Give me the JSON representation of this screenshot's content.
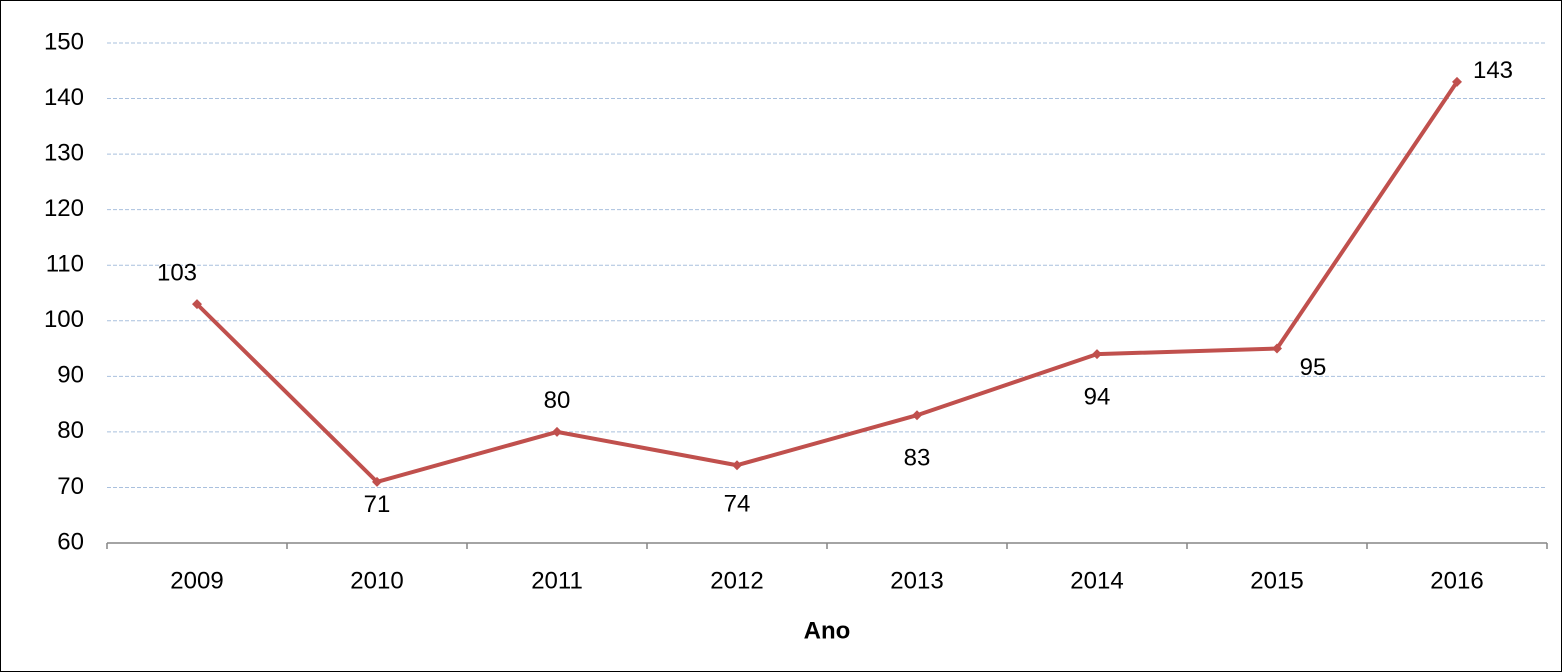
{
  "chart_data": {
    "type": "line",
    "x_label": "Ano",
    "categories": [
      "2009",
      "2010",
      "2011",
      "2012",
      "2013",
      "2014",
      "2015",
      "2016"
    ],
    "series": [
      {
        "color": "#c0504d",
        "values": [
          103,
          71,
          80,
          74,
          83,
          94,
          95,
          143
        ]
      }
    ],
    "ylim": [
      60,
      150
    ],
    "yticks": [
      60,
      70,
      80,
      90,
      100,
      110,
      120,
      130,
      140,
      150
    ],
    "grid": true,
    "data_labels": true
  }
}
